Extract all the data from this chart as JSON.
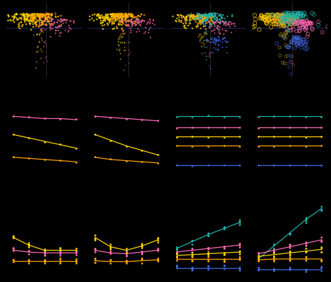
{
  "bg_color": "#000000",
  "fig_width": 4.74,
  "fig_height": 4.03,
  "dpi": 100,
  "scatter_configs": [
    {
      "groups": [
        {
          "color": "#FFD700",
          "n": 150,
          "xmu": -0.18,
          "xsig": 0.18,
          "ymu": 0.72,
          "ysig": 0.18,
          "s": 3
        },
        {
          "color": "#FFA500",
          "n": 120,
          "xmu": 0.0,
          "xsig": 0.12,
          "ymu": 0.75,
          "ysig": 0.15,
          "s": 3
        },
        {
          "color": "#FF69B4",
          "n": 80,
          "xmu": 0.22,
          "xsig": 0.14,
          "ymu": 0.6,
          "ysig": 0.2,
          "s": 2
        }
      ],
      "vline_x": 0.08,
      "hline_y": 0.62,
      "open": false
    },
    {
      "groups": [
        {
          "color": "#FFD700",
          "n": 150,
          "xmu": -0.18,
          "xsig": 0.18,
          "ymu": 0.72,
          "ysig": 0.18,
          "s": 3
        },
        {
          "color": "#FFA500",
          "n": 120,
          "xmu": 0.0,
          "xsig": 0.12,
          "ymu": 0.75,
          "ysig": 0.15,
          "s": 3
        },
        {
          "color": "#FF69B4",
          "n": 80,
          "xmu": 0.22,
          "xsig": 0.14,
          "ymu": 0.6,
          "ysig": 0.2,
          "s": 2
        }
      ],
      "vline_x": 0.08,
      "hline_y": 0.62,
      "open": false
    },
    {
      "groups": [
        {
          "color": "#FFD700",
          "n": 100,
          "xmu": -0.22,
          "xsig": 0.16,
          "ymu": 0.7,
          "ysig": 0.18,
          "s": 3
        },
        {
          "color": "#FFA500",
          "n": 100,
          "xmu": -0.05,
          "xsig": 0.12,
          "ymu": 0.72,
          "ysig": 0.16,
          "s": 3
        },
        {
          "color": "#20B2AA",
          "n": 120,
          "xmu": 0.08,
          "xsig": 0.13,
          "ymu": 0.75,
          "ysig": 0.16,
          "s": 3
        },
        {
          "color": "#FF69B4",
          "n": 70,
          "xmu": 0.25,
          "xsig": 0.13,
          "ymu": 0.58,
          "ysig": 0.18,
          "s": 2
        },
        {
          "color": "#4169E1",
          "n": 50,
          "xmu": 0.18,
          "xsig": 0.1,
          "ymu": 0.28,
          "ysig": 0.18,
          "s": 2
        }
      ],
      "vline_x": 0.08,
      "hline_y": 0.62,
      "open": false
    },
    {
      "groups": [
        {
          "color": "#FFD700",
          "n": 70,
          "xmu": -0.22,
          "xsig": 0.16,
          "ymu": 0.7,
          "ysig": 0.18,
          "s": 5
        },
        {
          "color": "#FFA500",
          "n": 70,
          "xmu": -0.05,
          "xsig": 0.12,
          "ymu": 0.72,
          "ysig": 0.16,
          "s": 5
        },
        {
          "color": "#20B2AA",
          "n": 80,
          "xmu": 0.1,
          "xsig": 0.13,
          "ymu": 0.75,
          "ysig": 0.16,
          "s": 5
        },
        {
          "color": "#FF69B4",
          "n": 55,
          "xmu": 0.27,
          "xsig": 0.13,
          "ymu": 0.58,
          "ysig": 0.18,
          "s": 4
        },
        {
          "color": "#4169E1",
          "n": 40,
          "xmu": 0.2,
          "xsig": 0.1,
          "ymu": 0.28,
          "ysig": 0.18,
          "s": 4
        }
      ],
      "vline_x": 0.08,
      "hline_y": 0.62,
      "open": true
    }
  ],
  "x_pts": [
    1,
    2,
    3,
    4,
    5
  ],
  "row2_col1_lines": [
    {
      "color": "#FF69B4",
      "y": [
        0.88,
        0.87,
        0.86,
        0.86,
        0.85
      ]
    },
    {
      "color": "#FFD700",
      "y": [
        0.72,
        0.69,
        0.66,
        0.63,
        0.6
      ]
    },
    {
      "color": "#FFA500",
      "y": [
        0.52,
        0.51,
        0.5,
        0.49,
        0.48
      ]
    }
  ],
  "row2_col2_lines": [
    {
      "color": "#FF69B4",
      "y": [
        0.88,
        0.87,
        0.86,
        0.85,
        0.84
      ]
    },
    {
      "color": "#FFD700",
      "y": [
        0.72,
        0.67,
        0.62,
        0.58,
        0.54
      ]
    },
    {
      "color": "#FFA500",
      "y": [
        0.52,
        0.5,
        0.49,
        0.48,
        0.47
      ]
    }
  ],
  "row2_col3_lines": [
    {
      "color": "#20B2AA",
      "y": [
        0.88,
        0.88,
        0.88,
        0.88,
        0.88
      ]
    },
    {
      "color": "#FF69B4",
      "y": [
        0.78,
        0.78,
        0.78,
        0.78,
        0.78
      ]
    },
    {
      "color": "#FFD700",
      "y": [
        0.7,
        0.7,
        0.7,
        0.7,
        0.7
      ]
    },
    {
      "color": "#FFA500",
      "y": [
        0.62,
        0.62,
        0.62,
        0.62,
        0.62
      ]
    },
    {
      "color": "#4169E1",
      "y": [
        0.45,
        0.45,
        0.45,
        0.45,
        0.45
      ]
    }
  ],
  "row2_col4_lines": [
    {
      "color": "#20B2AA",
      "y": [
        0.88,
        0.88,
        0.88,
        0.88,
        0.88
      ]
    },
    {
      "color": "#FF69B4",
      "y": [
        0.78,
        0.78,
        0.78,
        0.78,
        0.78
      ]
    },
    {
      "color": "#FFD700",
      "y": [
        0.7,
        0.7,
        0.7,
        0.7,
        0.7
      ]
    },
    {
      "color": "#FFA500",
      "y": [
        0.62,
        0.62,
        0.62,
        0.62,
        0.62
      ]
    },
    {
      "color": "#4169E1",
      "y": [
        0.45,
        0.45,
        0.45,
        0.45,
        0.45
      ]
    }
  ],
  "row3_col1_lines": [
    {
      "color": "#FFD700",
      "y": [
        0.55,
        0.46,
        0.4,
        0.4,
        0.4
      ]
    },
    {
      "color": "#FF69B4",
      "y": [
        0.4,
        0.38,
        0.37,
        0.37,
        0.37
      ]
    },
    {
      "color": "#FFA500",
      "y": [
        0.28,
        0.28,
        0.28,
        0.28,
        0.28
      ]
    }
  ],
  "row3_col2_lines": [
    {
      "color": "#FFD700",
      "y": [
        0.55,
        0.44,
        0.4,
        0.45,
        0.52
      ]
    },
    {
      "color": "#FF69B4",
      "y": [
        0.4,
        0.37,
        0.36,
        0.38,
        0.4
      ]
    },
    {
      "color": "#FFA500",
      "y": [
        0.28,
        0.27,
        0.27,
        0.28,
        0.29
      ]
    }
  ],
  "row3_col3_lines": [
    {
      "color": "#20B2AA",
      "y": [
        0.42,
        0.5,
        0.58,
        0.65,
        0.72
      ]
    },
    {
      "color": "#FF69B4",
      "y": [
        0.38,
        0.4,
        0.42,
        0.44,
        0.46
      ]
    },
    {
      "color": "#FFD700",
      "y": [
        0.34,
        0.35,
        0.36,
        0.37,
        0.38
      ]
    },
    {
      "color": "#FFA500",
      "y": [
        0.3,
        0.3,
        0.3,
        0.3,
        0.3
      ]
    },
    {
      "color": "#4169E1",
      "y": [
        0.2,
        0.2,
        0.2,
        0.2,
        0.2
      ]
    }
  ],
  "row3_col4_lines": [
    {
      "color": "#20B2AA",
      "y": [
        0.3,
        0.45,
        0.6,
        0.75,
        0.88
      ]
    },
    {
      "color": "#FF69B4",
      "y": [
        0.36,
        0.4,
        0.44,
        0.48,
        0.52
      ]
    },
    {
      "color": "#FFD700",
      "y": [
        0.33,
        0.35,
        0.37,
        0.39,
        0.41
      ]
    },
    {
      "color": "#FFA500",
      "y": [
        0.29,
        0.3,
        0.3,
        0.3,
        0.3
      ]
    },
    {
      "color": "#4169E1",
      "y": [
        0.18,
        0.18,
        0.18,
        0.18,
        0.18
      ]
    }
  ]
}
